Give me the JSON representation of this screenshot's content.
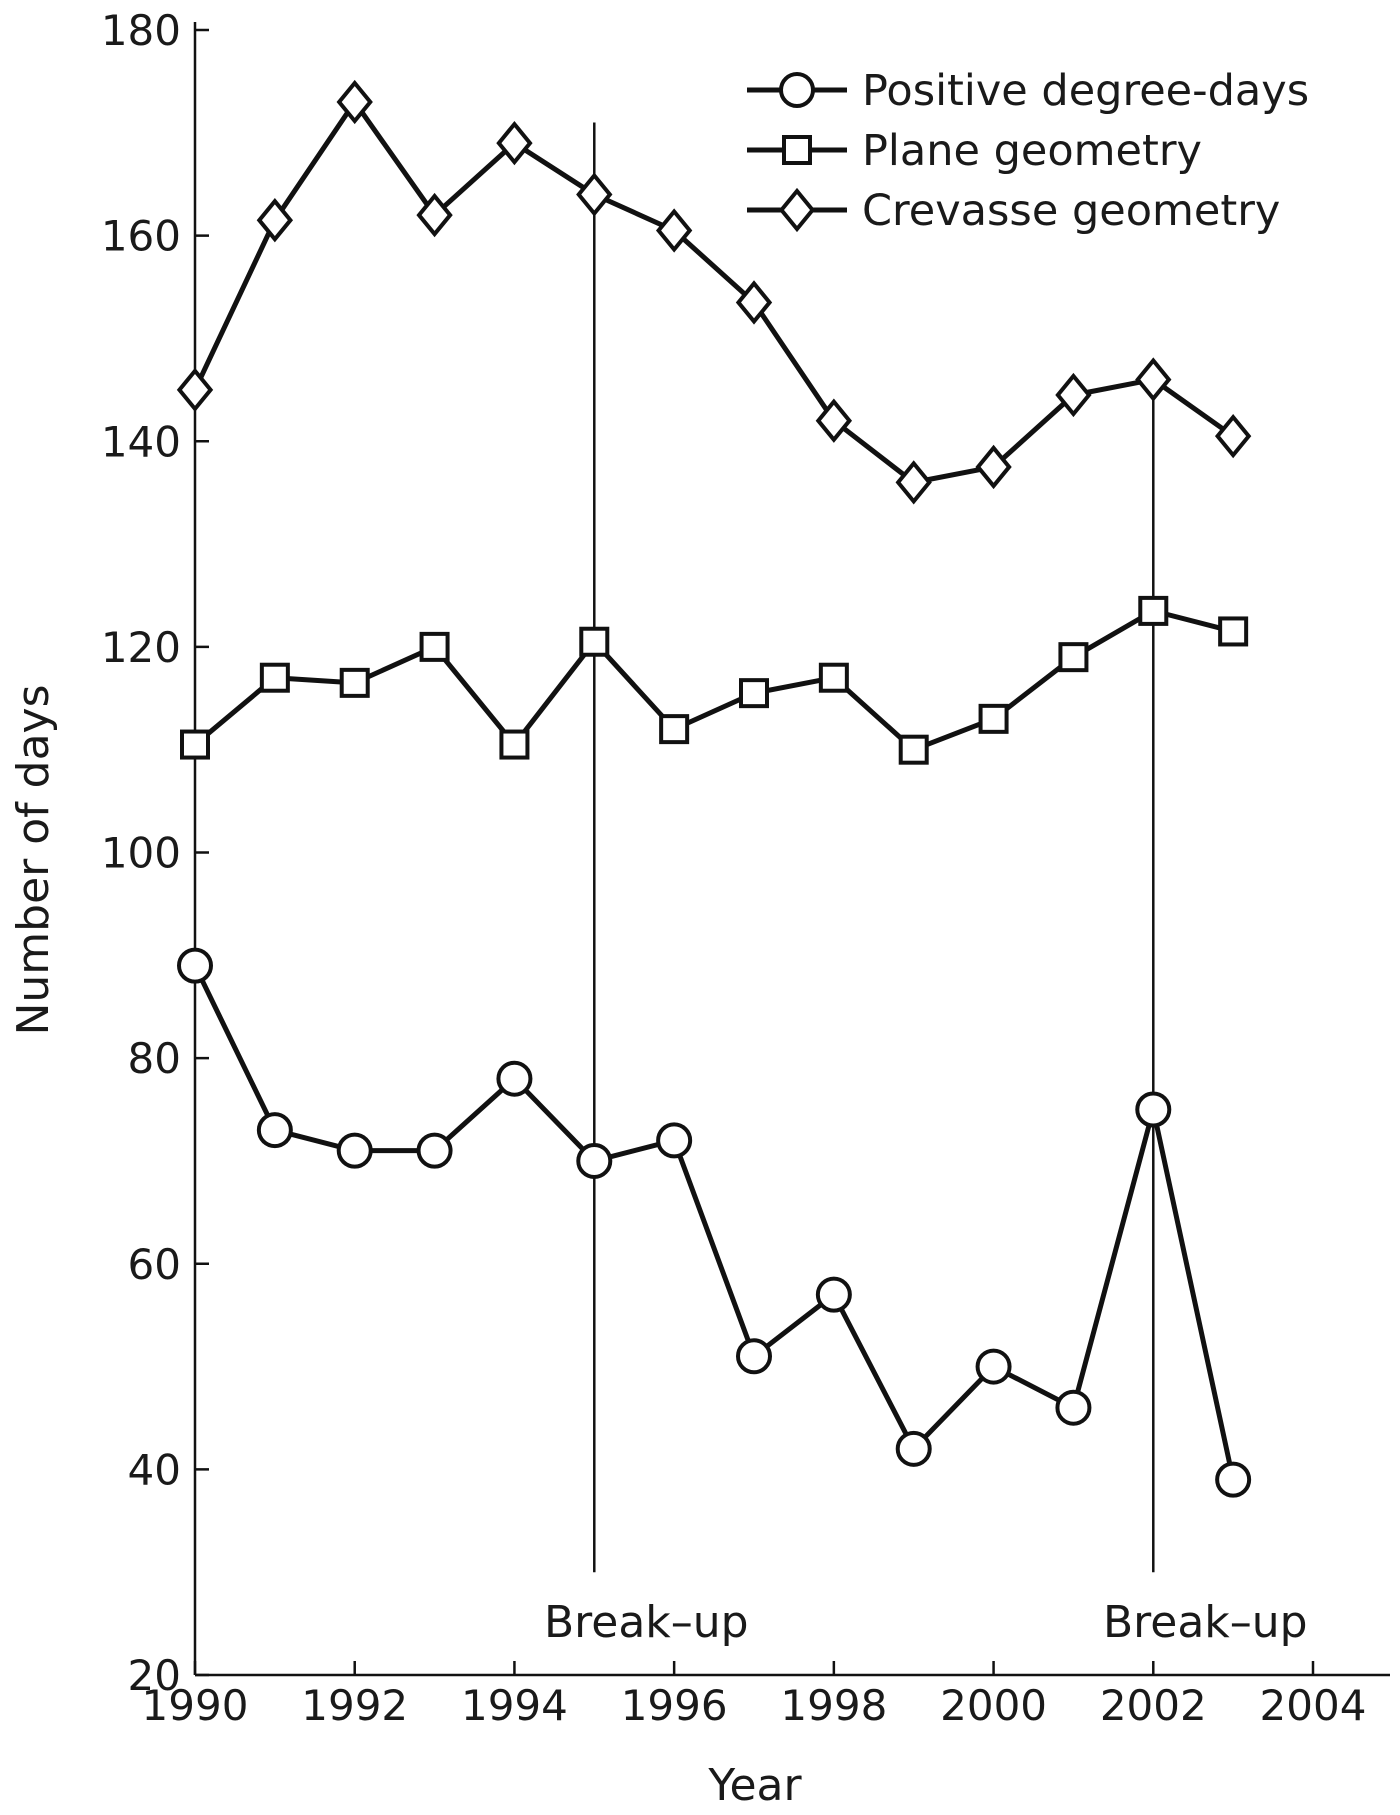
{
  "chart_data": {
    "type": "line",
    "xlabel": "Year",
    "ylabel": "Number of days",
    "xlim": [
      1990,
      2005
    ],
    "ylim": [
      20,
      180
    ],
    "xticks": [
      1990,
      1992,
      1994,
      1996,
      1998,
      2000,
      2002,
      2004
    ],
    "yticks": [
      20,
      40,
      60,
      80,
      100,
      120,
      140,
      160,
      180
    ],
    "grid": false,
    "legend_position": "top-right",
    "x": [
      1990,
      1991,
      1992,
      1993,
      1994,
      1995,
      1996,
      1997,
      1998,
      1999,
      2000,
      2001,
      2002,
      2003
    ],
    "series": [
      {
        "name": "Positive degree-days",
        "marker": "circle",
        "values": [
          89,
          73,
          71,
          71,
          78,
          70,
          72,
          51,
          57,
          42,
          50,
          46,
          75,
          39
        ]
      },
      {
        "name": "Plane geometry",
        "marker": "square",
        "values": [
          110.5,
          117,
          116.5,
          120,
          110.5,
          120.5,
          112,
          115.5,
          117,
          110,
          113,
          119,
          123.5,
          121.5
        ]
      },
      {
        "name": "Crevasse geometry",
        "marker": "diamond",
        "values": [
          145,
          161.5,
          173,
          162,
          169,
          164,
          160.5,
          153.5,
          142,
          136,
          137.5,
          144.5,
          146,
          140.5
        ]
      }
    ],
    "annotations": [
      {
        "x": 1995,
        "y_from": 30,
        "y_to": 171,
        "text": "Break–up"
      },
      {
        "x": 2002,
        "y_from": 30,
        "y_to": 146,
        "text": "Break–up"
      }
    ],
    "line_color": "#111111"
  }
}
